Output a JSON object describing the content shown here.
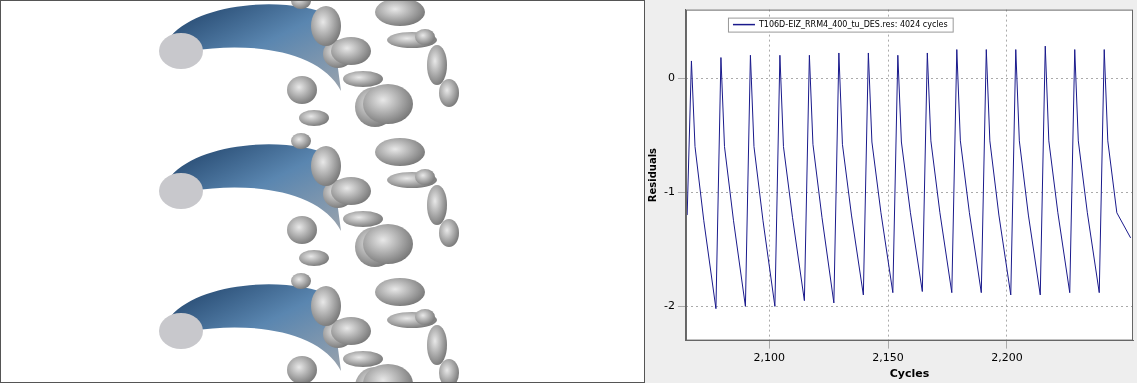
{
  "chart_data": {
    "type": "line",
    "xlabel": "Cycles",
    "ylabel": "Residuals",
    "xlim": [
      2065,
      2253
    ],
    "ylim": [
      -2.3,
      0.6
    ],
    "xticks": [
      2100,
      2150,
      2200
    ],
    "yticks": [
      -2,
      -1,
      0
    ],
    "grid": true,
    "legend": "upper left",
    "series": [
      {
        "name": "T106D-EIZ_RRM4_400_tu_DES.res: 4024 cycles",
        "color": "#1a1a8c",
        "x": [
          2065.5,
          2067.3,
          2068.8,
          2072.5,
          2077.6,
          2079.7,
          2081.2,
          2085,
          2090,
          2092.1,
          2093.6,
          2097.4,
          2102.4,
          2104.5,
          2106,
          2109.8,
          2114.8,
          2116.9,
          2118.4,
          2122.2,
          2127.2,
          2129.3,
          2130.8,
          2134.6,
          2139.6,
          2141.7,
          2143.2,
          2147,
          2152,
          2154.1,
          2155.6,
          2159.4,
          2164.4,
          2166.5,
          2168,
          2171.8,
          2176.8,
          2178.9,
          2180.4,
          2184.2,
          2189.2,
          2191.3,
          2192.8,
          2196.6,
          2201.6,
          2203.7,
          2205.2,
          2209,
          2214,
          2216.1,
          2217.6,
          2221.4,
          2226.4,
          2228.5,
          2230,
          2233.8,
          2238.8,
          2240.9,
          2242.4,
          2246.2,
          2252
        ],
        "values": [
          -1.2,
          0.15,
          -0.6,
          -1.25,
          -2.02,
          0.18,
          -0.6,
          -1.25,
          -2.0,
          0.2,
          -0.6,
          -1.25,
          -2.0,
          0.2,
          -0.6,
          -1.22,
          -1.95,
          0.2,
          -0.58,
          -1.22,
          -1.97,
          0.22,
          -0.58,
          -1.2,
          -1.9,
          0.22,
          -0.56,
          -1.18,
          -1.88,
          0.2,
          -0.56,
          -1.18,
          -1.87,
          0.22,
          -0.55,
          -1.18,
          -1.88,
          0.25,
          -0.55,
          -1.18,
          -1.88,
          0.25,
          -0.55,
          -1.2,
          -1.9,
          0.25,
          -0.55,
          -1.2,
          -1.9,
          0.28,
          -0.55,
          -1.18,
          -1.88,
          0.25,
          -0.55,
          -1.18,
          -1.88,
          0.25,
          -0.55,
          -1.18,
          -1.4
        ]
      }
    ]
  }
}
